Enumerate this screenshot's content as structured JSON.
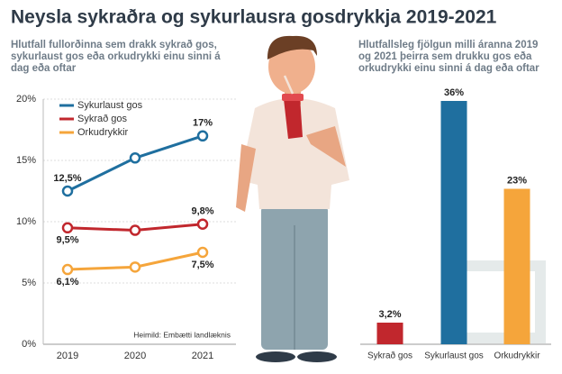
{
  "title": "Neysla sykraðra og sykurlausra gosdrykkja 2019-2021",
  "chart_data": [
    {
      "type": "line",
      "subtitle": "Hlutfall fullorðinna sem drakk sykrað gos, sykurlaust gos eða orkudrykki einu sinni á dag eða oftar",
      "categories": [
        "2019",
        "2020",
        "2021"
      ],
      "series": [
        {
          "name": "Sykurlaust gos",
          "color": "#1f6f9f",
          "values": [
            12.5,
            15.2,
            17
          ],
          "value_labels": [
            "12,5%",
            null,
            "17%"
          ]
        },
        {
          "name": "Sykrað gos",
          "color": "#c1272d",
          "values": [
            9.5,
            9.3,
            9.8
          ],
          "value_labels": [
            "9,5%",
            null,
            "9,8%"
          ]
        },
        {
          "name": "Orkudrykkir",
          "color": "#f5a53b",
          "values": [
            6.1,
            6.3,
            7.5
          ],
          "value_labels": [
            "6,1%",
            null,
            "7,5%"
          ]
        }
      ],
      "ylim": [
        0,
        20
      ],
      "yticks": [
        {
          "value": 0,
          "label": "0%"
        },
        {
          "value": 5,
          "label": "5%"
        },
        {
          "value": 10,
          "label": "10%"
        },
        {
          "value": 15,
          "label": "15%"
        },
        {
          "value": 20,
          "label": "20%"
        }
      ],
      "grid": true,
      "legend": "top-left",
      "source": "Heimild: Embætti landlæknis"
    },
    {
      "type": "bar",
      "subtitle": "Hlutfallsleg fjölgun milli áranna 2019 og 2021 þeirra sem drukku gos eða orkudrykki einu sinni á dag eða oftar",
      "categories": [
        "Sykrað gos",
        "Sykurlaust gos",
        "Orkudrykkir"
      ],
      "values": [
        3.2,
        36,
        23
      ],
      "value_labels": [
        "3,2%",
        "36%",
        "23%"
      ],
      "colors": [
        "#c1272d",
        "#1f6f9f",
        "#f5a53b"
      ]
    }
  ]
}
